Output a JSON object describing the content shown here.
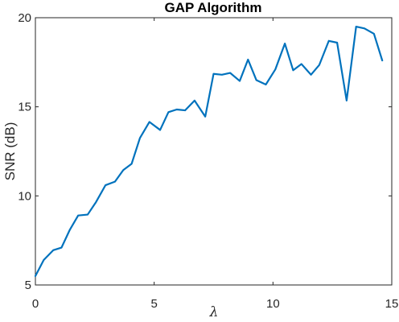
{
  "chart_data": {
    "type": "line",
    "title": "GAP Algorithm",
    "xlabel": "λ",
    "ylabel": "SNR (dB)",
    "xlim": [
      0,
      15
    ],
    "ylim": [
      5,
      20
    ],
    "xticks": [
      0,
      5,
      10,
      15
    ],
    "yticks": [
      5,
      10,
      15,
      20
    ],
    "grid": false,
    "series": [
      {
        "color": "#0072BD",
        "x": [
          0,
          0.35,
          0.75,
          1.1,
          1.45,
          1.8,
          2.2,
          2.55,
          2.95,
          3.35,
          3.7,
          4.05,
          4.4,
          4.8,
          5.25,
          5.6,
          5.95,
          6.3,
          6.7,
          7.15,
          7.5,
          7.85,
          8.2,
          8.6,
          8.95,
          9.3,
          9.7,
          10.1,
          10.5,
          10.85,
          11.2,
          11.6,
          11.95,
          12.35,
          12.7,
          13.1,
          13.5,
          13.85,
          14.25,
          14.6
        ],
        "values": [
          5.5,
          6.4,
          6.95,
          7.1,
          8.1,
          8.9,
          8.95,
          9.65,
          10.6,
          10.8,
          11.45,
          11.8,
          13.25,
          14.15,
          13.7,
          14.7,
          14.85,
          14.8,
          15.35,
          14.45,
          16.85,
          16.8,
          16.9,
          16.45,
          17.65,
          16.5,
          16.25,
          17.1,
          18.55,
          17.05,
          17.4,
          16.8,
          17.35,
          18.7,
          18.6,
          15.35,
          19.5,
          19.4,
          19.1,
          17.6
        ]
      }
    ]
  }
}
